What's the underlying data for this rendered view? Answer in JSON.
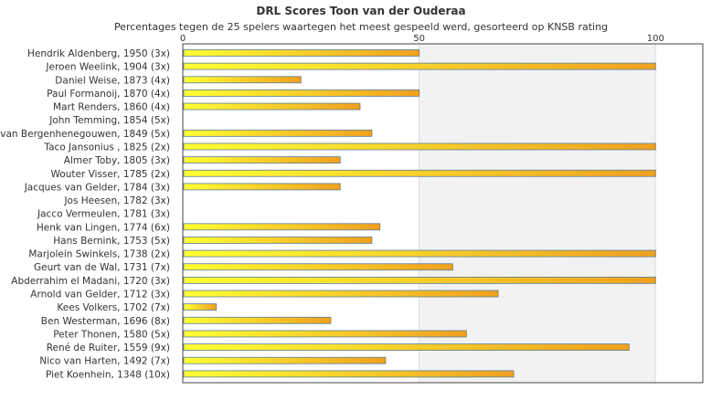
{
  "chart_data": {
    "type": "bar",
    "orientation": "horizontal",
    "title": "DRL Scores Toon van der Ouderaa",
    "subtitle": "Percentages tegen de 25 spelers waartegen het meest gespeeld werd, gesorteerd op KNSB rating",
    "xlabel": "",
    "ylabel": "",
    "xlim": [
      0,
      110
    ],
    "x_ticks": [
      "0",
      "50",
      "100"
    ],
    "grid": true,
    "legend": "none",
    "colors": {
      "bar_start": "#ffff33",
      "bar_end": "#f0a020",
      "bar_stroke": "#5b7f95",
      "shade_band": "#f2f2f2"
    },
    "categories": [
      "Hendrik Aldenberg, 1950 (3x)",
      "Jeroen Weelink, 1904 (3x)",
      "Daniel Weise, 1873 (4x)",
      "Paul Formanoij, 1870 (4x)",
      "Mart Renders, 1860 (4x)",
      "John Temming, 1854 (5x)",
      "van Bergenhenegouwen, 1849 (5x)",
      "Taco Jansonius , 1825 (2x)",
      "Almer Toby, 1805 (3x)",
      "Wouter Visser, 1785 (2x)",
      "Jacques van Gelder, 1784 (3x)",
      "Jos Heesen, 1782 (3x)",
      "Jacco Vermeulen, 1781 (3x)",
      "Henk van Lingen, 1774 (6x)",
      "Hans Bernink, 1753 (5x)",
      "Marjolein Swinkels, 1738 (2x)",
      "Geurt van de Wal, 1731 (7x)",
      "Abderrahim el Madani, 1720 (3x)",
      "Arnold van Gelder, 1712 (3x)",
      "Kees Volkers, 1702 (7x)",
      "Ben Westerman, 1696 (8x)",
      "Peter Thonen, 1580 (5x)",
      "René de Ruiter, 1559 (9x)",
      "Nico van Harten, 1492 (7x)",
      "Piet Koenhein, 1348 (10x)"
    ],
    "values": [
      50,
      100,
      25,
      50,
      37.5,
      0,
      40,
      100,
      33.3,
      100,
      33.3,
      0,
      0,
      41.7,
      40,
      100,
      57.1,
      100,
      66.7,
      7.1,
      31.3,
      60,
      94.4,
      42.9,
      70
    ]
  }
}
